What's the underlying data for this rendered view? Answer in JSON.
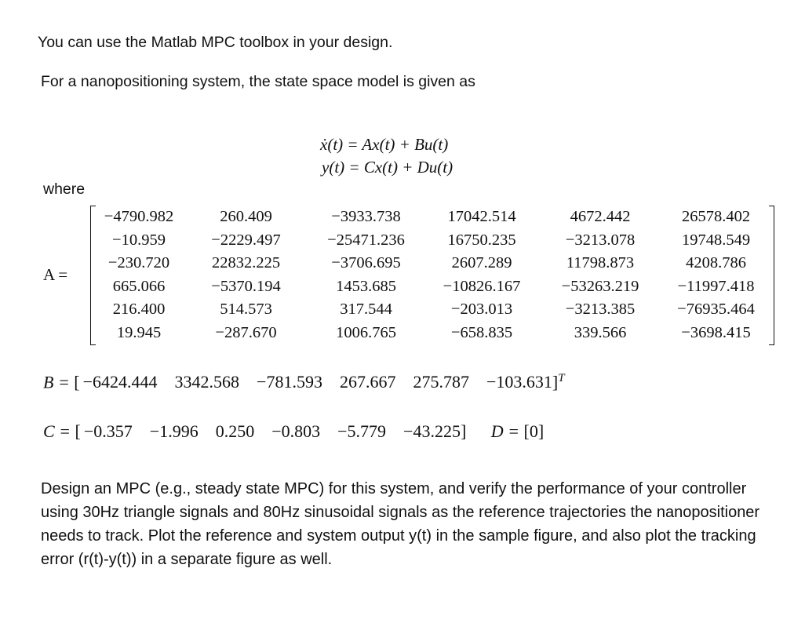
{
  "intro": "You can use the Matlab MPC toolbox in your design.",
  "model_intro": "For a nanopositioning system, the state space model is given as",
  "equations": [
    "ẋ(t) = Ax(t) + Bu(t)",
    "y(t) = Cx(t) + Du(t)"
  ],
  "where": "where",
  "A": {
    "label": "A =",
    "rows": [
      [
        "−4790.982",
        "260.409",
        "−3933.738",
        "17042.514",
        "4672.442",
        "26578.402"
      ],
      [
        "−10.959",
        "−2229.497",
        "−25471.236",
        "16750.235",
        "−3213.078",
        "19748.549"
      ],
      [
        "−230.720",
        "22832.225",
        "−3706.695",
        "2607.289",
        "11798.873",
        "4208.786"
      ],
      [
        "665.066",
        "−5370.194",
        "1453.685",
        "−10826.167",
        "−53263.219",
        "−11997.418"
      ],
      [
        "216.400",
        "514.573",
        "317.544",
        "−203.013",
        "−3213.385",
        "−76935.464"
      ],
      [
        "19.945",
        "−287.670",
        "1006.765",
        "−658.835",
        "339.566",
        "−3698.415"
      ]
    ]
  },
  "B": {
    "label": "B =",
    "values": [
      "−6424.444",
      "3342.568",
      "−781.593",
      "267.667",
      "275.787",
      "−103.631"
    ],
    "superscript": "T"
  },
  "C": {
    "label": "C =",
    "values": [
      "−0.357",
      "−1.996",
      "0.250",
      "−0.803",
      "−5.779",
      "−43.225"
    ]
  },
  "D": {
    "label": "D =",
    "value": "0"
  },
  "task": "Design an MPC (e.g., steady state MPC) for this system, and verify the performance of your controller using 30Hz triangle signals and 80Hz sinusoidal signals as the reference trajectories the nanopositioner needs to track. Plot the reference and system output y(t) in the sample figure, and also plot the tracking error (r(t)-y(t)) in a separate figure as well."
}
